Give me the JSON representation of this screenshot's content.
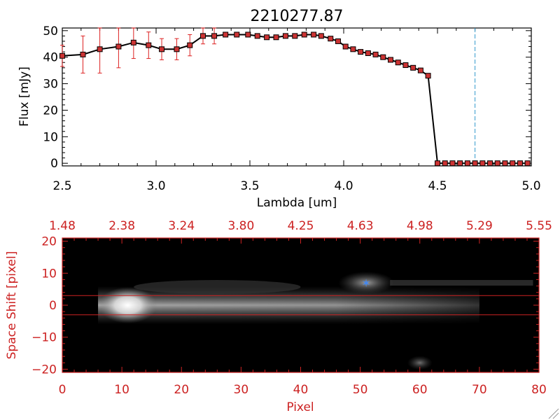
{
  "chart_data": [
    {
      "type": "line",
      "title": "2210277.87",
      "xlabel": "Lambda [um]",
      "ylabel": "Flux [mJy]",
      "xlim": [
        2.5,
        5.0
      ],
      "ylim": [
        -1,
        51
      ],
      "xticks": [
        2.5,
        3.0,
        3.5,
        4.0,
        4.5,
        5.0
      ],
      "xtick_labels": [
        "2.5",
        "3.0",
        "3.5",
        "4.0",
        "4.5",
        "5.0"
      ],
      "yticks": [
        0,
        10,
        20,
        30,
        40,
        50
      ],
      "ytick_labels": [
        "0",
        "10",
        "20",
        "30",
        "40",
        "50"
      ],
      "vline": 4.7,
      "series": [
        {
          "name": "flux",
          "x": [
            2.5,
            2.61,
            2.7,
            2.8,
            2.88,
            2.96,
            3.03,
            3.11,
            3.18,
            3.25,
            3.31,
            3.37,
            3.43,
            3.49,
            3.54,
            3.59,
            3.64,
            3.69,
            3.74,
            3.79,
            3.84,
            3.88,
            3.93,
            3.97,
            4.01,
            4.05,
            4.09,
            4.13,
            4.17,
            4.21,
            4.25,
            4.29,
            4.33,
            4.37,
            4.41,
            4.45,
            4.5,
            4.54,
            4.58,
            4.62,
            4.66,
            4.7,
            4.74,
            4.78,
            4.82,
            4.86,
            4.9,
            4.94,
            4.98
          ],
          "values": [
            40.5,
            41,
            43,
            44,
            45.5,
            44.5,
            43,
            43,
            44.5,
            48,
            48,
            48.5,
            48.5,
            48.5,
            48,
            47.5,
            47.5,
            48,
            48,
            48.5,
            48.5,
            48,
            47,
            46,
            44,
            43,
            42,
            41.5,
            41,
            40,
            39,
            38,
            37,
            36,
            35,
            33,
            0,
            0,
            0,
            0,
            0,
            0,
            0,
            0,
            0,
            0,
            0,
            0,
            0
          ],
          "errors": [
            4,
            7,
            9,
            8,
            6,
            5,
            4,
            4,
            4,
            3,
            3,
            0,
            0,
            0,
            0,
            0,
            0,
            0,
            0,
            0,
            0,
            0,
            0,
            0,
            0,
            0,
            0,
            0,
            0,
            0,
            0,
            0,
            0,
            0,
            0,
            0,
            0,
            0,
            0,
            0,
            0,
            0,
            0,
            0,
            0,
            0,
            0,
            0,
            0
          ]
        }
      ],
      "colors": {
        "line": "#000000",
        "marker": "#cc3333",
        "error": "#dd2222",
        "vline": "#3399cc"
      }
    },
    {
      "type": "heatmap",
      "xlabel": "Pixel",
      "ylabel": "Space Shift [pixel]",
      "xlim": [
        0,
        80
      ],
      "ylim": [
        -21,
        21
      ],
      "xticks": [
        0,
        10,
        20,
        30,
        40,
        50,
        60,
        70,
        80
      ],
      "xtick_labels": [
        "0",
        "10",
        "20",
        "30",
        "40",
        "50",
        "60",
        "70",
        "80"
      ],
      "yticks": [
        -20,
        -10,
        0,
        10,
        20
      ],
      "ytick_labels": [
        "−20",
        "−10",
        "0",
        "10",
        "20"
      ],
      "top_axis_ticks": [
        0,
        10,
        20,
        30,
        40,
        50,
        60,
        70,
        80
      ],
      "top_axis_labels": [
        "1.48",
        "2.38",
        "3.24",
        "3.80",
        "4.25",
        "4.63",
        "4.98",
        "5.29",
        "5.55"
      ],
      "hlines": [
        3,
        -3
      ],
      "marker": {
        "x": 51,
        "y": 7,
        "symbol": "star"
      },
      "sources": [
        {
          "name": "main-trace",
          "x_start": 6,
          "x_end": 70,
          "peak_x": 11,
          "y": 0,
          "peak": 1.0
        },
        {
          "name": "companion",
          "x": 51,
          "y": 7,
          "peak": 0.55
        },
        {
          "name": "faint-blob",
          "x": 60,
          "y": -18,
          "peak": 0.3
        },
        {
          "name": "faint-arc",
          "x_start": 12,
          "x_end": 40,
          "y": 7,
          "peak": 0.18
        }
      ],
      "colors": {
        "axis": "#cc2222",
        "hline": "#cc2222",
        "marker": "#4488ee",
        "background": "#000000"
      }
    }
  ]
}
